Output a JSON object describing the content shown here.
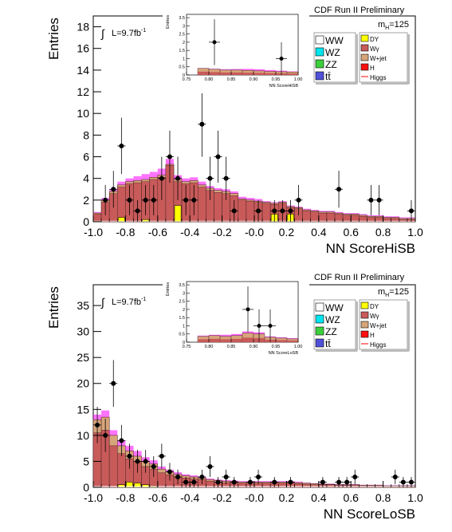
{
  "chart_data": [
    {
      "type": "bar",
      "title": "CDF Run II Preliminary",
      "mass_label": "m",
      "mass_sub": "H",
      "mass_value": "=125",
      "lumi_label": "L=9.7fb",
      "lumi_sup": "-1",
      "xlabel": "NN ScoreHiSB",
      "ylabel": "Entries",
      "xlim": [
        -1.0,
        1.0
      ],
      "ylim": [
        0,
        19
      ],
      "xticks": [
        "-1.0",
        "-0.8",
        "-0.6",
        "-0.4",
        "-0.2",
        "-0.0",
        "0.2",
        "0.4",
        "0.6",
        "0.8",
        "1.0"
      ],
      "yticks": [
        "0",
        "2",
        "4",
        "6",
        "8",
        "10",
        "12",
        "14",
        "16",
        "18"
      ],
      "ytick_values": [
        0,
        2,
        4,
        6,
        8,
        10,
        12,
        14,
        16,
        18
      ],
      "bin_width": 0.05,
      "bins_low": [
        -1.0,
        -0.95,
        -0.9,
        -0.85,
        -0.8,
        -0.75,
        -0.7,
        -0.65,
        -0.6,
        -0.55,
        -0.5,
        -0.45,
        -0.4,
        -0.35,
        -0.3,
        -0.25,
        -0.2,
        -0.15,
        -0.1,
        -0.05,
        0.0,
        0.05,
        0.1,
        0.15,
        0.2,
        0.25,
        0.3,
        0.35,
        0.4,
        0.45,
        0.5,
        0.55,
        0.6,
        0.65,
        0.7,
        0.75,
        0.8,
        0.85,
        0.9,
        0.95
      ],
      "stack_total": [
        0.8,
        2.0,
        2.8,
        3.4,
        3.7,
        3.8,
        3.9,
        4.1,
        4.3,
        5.3,
        3.9,
        3.7,
        3.8,
        3.4,
        3.1,
        2.9,
        2.8,
        2.6,
        2.1,
        2.0,
        1.9,
        1.8,
        1.7,
        1.8,
        1.4,
        1.3,
        1.1,
        1.0,
        0.9,
        0.9,
        0.8,
        0.7,
        0.7,
        0.6,
        0.5,
        0.5,
        0.4,
        0.4,
        0.3,
        0.3
      ],
      "wjet_top": [
        0.7,
        1.8,
        2.6,
        3.2,
        3.5,
        3.6,
        3.7,
        3.9,
        4.1,
        5.2,
        3.7,
        3.5,
        3.6,
        3.2,
        2.9,
        2.7,
        2.6,
        2.4,
        2.0,
        1.9,
        1.8,
        1.7,
        1.6,
        1.7,
        1.3,
        1.2,
        1.0,
        0.9,
        0.8,
        0.8,
        0.7,
        0.6,
        0.6,
        0.5,
        0.4,
        0.4,
        0.3,
        0.3,
        0.2,
        0.2
      ],
      "dy": [
        0,
        0,
        0,
        0.4,
        0,
        0,
        0.2,
        0,
        0,
        0,
        1.5,
        0,
        0,
        0,
        0,
        0,
        0,
        0,
        0,
        0,
        0,
        0,
        0.7,
        0,
        0.7,
        0,
        0,
        0,
        0,
        0,
        0,
        0,
        0,
        0,
        0,
        0,
        0,
        0,
        0,
        0
      ],
      "ww": [
        0.1,
        0.1,
        0.1,
        0.1,
        0.1,
        0.1,
        0.1,
        0.1,
        0.1,
        0.1,
        0.1,
        0.1,
        0.1,
        0.1,
        0.1,
        0.1,
        0.1,
        0.1,
        0.1,
        0.1,
        0.1,
        0.1,
        0.1,
        0.1,
        0.1,
        0.1,
        0.1,
        0.1,
        0.1,
        0.1,
        0.1,
        0.1,
        0.1,
        0.1,
        0.1,
        0.1,
        0.1,
        0.1,
        0.1,
        0.1
      ],
      "signal_band": [
        0.9,
        2.2,
        3.0,
        3.7,
        4.0,
        4.2,
        4.4,
        4.6,
        4.9,
        5.8,
        4.3,
        4.0,
        4.1,
        3.7,
        3.3,
        3.1,
        3.0,
        2.8,
        2.3,
        2.2,
        2.1,
        1.9,
        1.8,
        1.9,
        1.5,
        1.4,
        1.2,
        1.1,
        1.0,
        1.0,
        0.9,
        0.8,
        0.8,
        0.7,
        0.6,
        0.6,
        0.5,
        0.5,
        0.4,
        0.4
      ],
      "data_points": [
        {
          "x": -0.925,
          "y": 2,
          "err": 1.4
        },
        {
          "x": -0.875,
          "y": 3,
          "err": 1.7
        },
        {
          "x": -0.825,
          "y": 7,
          "err": 2.6
        },
        {
          "x": -0.775,
          "y": 2,
          "err": 1.4
        },
        {
          "x": -0.725,
          "y": 1,
          "err": 1.0
        },
        {
          "x": -0.675,
          "y": 2,
          "err": 1.4
        },
        {
          "x": -0.625,
          "y": 2,
          "err": 1.4
        },
        {
          "x": -0.575,
          "y": 4,
          "err": 2.0
        },
        {
          "x": -0.525,
          "y": 6,
          "err": 2.4
        },
        {
          "x": -0.475,
          "y": 4,
          "err": 2.0
        },
        {
          "x": -0.425,
          "y": 2,
          "err": 1.4
        },
        {
          "x": -0.375,
          "y": 2,
          "err": 1.4
        },
        {
          "x": -0.325,
          "y": 9,
          "err": 3.0
        },
        {
          "x": -0.275,
          "y": 4,
          "err": 2.0
        },
        {
          "x": -0.225,
          "y": 6,
          "err": 2.4
        },
        {
          "x": -0.175,
          "y": 4,
          "err": 2.0
        },
        {
          "x": -0.125,
          "y": 1,
          "err": 1.0
        },
        {
          "x": 0.025,
          "y": 1,
          "err": 1.0
        },
        {
          "x": 0.125,
          "y": 1,
          "err": 1.0
        },
        {
          "x": 0.175,
          "y": 1,
          "err": 1.0
        },
        {
          "x": 0.225,
          "y": 1,
          "err": 1.0
        },
        {
          "x": 0.275,
          "y": 2,
          "err": 1.4
        },
        {
          "x": 0.525,
          "y": 3,
          "err": 1.7
        },
        {
          "x": 0.725,
          "y": 2,
          "err": 1.4
        },
        {
          "x": 0.775,
          "y": 2,
          "err": 1.4
        },
        {
          "x": 0.975,
          "y": 1,
          "err": 1.0
        }
      ],
      "inset": {
        "xlabel": "NN ScoreHiSB",
        "ylabel": "Entries",
        "xlim": [
          0.75,
          1.0
        ],
        "ylim": [
          0,
          3.7
        ],
        "xticks": [
          "0.75",
          "0.80",
          "0.85",
          "0.90",
          "0.95",
          "1.00"
        ],
        "xtick_values": [
          0.75,
          0.8,
          0.85,
          0.9,
          0.95,
          1.0
        ],
        "yticks": [
          "0",
          "0.5",
          "1",
          "1.5",
          "2",
          "2.5",
          "3",
          "3.5"
        ],
        "ytick_values": [
          0,
          0.5,
          1,
          1.5,
          2,
          2.5,
          3,
          3.5
        ],
        "bins_low": [
          0.775,
          0.8,
          0.825,
          0.85,
          0.875,
          0.9,
          0.925,
          0.95,
          0.975
        ],
        "stack_total": [
          0.4,
          0.35,
          0.3,
          0.3,
          0.28,
          0.25,
          0.22,
          0.2,
          0.18
        ],
        "signal_band": [
          0.42,
          0.38,
          0.35,
          0.36,
          0.37,
          0.35,
          0.3,
          0.26,
          0.22
        ],
        "data_points": [
          {
            "x": 0.8125,
            "y": 2,
            "err": 1.4
          },
          {
            "x": 0.9625,
            "y": 1,
            "err": 1.0
          }
        ]
      }
    },
    {
      "type": "bar",
      "title": "CDF Run II Preliminary",
      "mass_label": "m",
      "mass_sub": "H",
      "mass_value": "=125",
      "lumi_label": "L=9.7fb",
      "lumi_sup": "-1",
      "xlabel": "NN ScoreLoSB",
      "ylabel": "Entries",
      "xlim": [
        -1.0,
        1.0
      ],
      "ylim": [
        0,
        39
      ],
      "xticks": [
        "-1.0",
        "-0.8",
        "-0.6",
        "-0.4",
        "-0.2",
        "-0.0",
        "0.2",
        "0.4",
        "0.6",
        "0.8",
        "1.0"
      ],
      "yticks": [
        "0",
        "5",
        "10",
        "15",
        "20",
        "25",
        "30",
        "35"
      ],
      "ytick_values": [
        0,
        5,
        10,
        15,
        20,
        25,
        30,
        35
      ],
      "bin_width": 0.05,
      "bins_low": [
        -1.0,
        -0.95,
        -0.9,
        -0.85,
        -0.8,
        -0.75,
        -0.7,
        -0.65,
        -0.6,
        -0.55,
        -0.5,
        -0.45,
        -0.4,
        -0.35,
        -0.3,
        -0.25,
        -0.2,
        -0.15,
        -0.1,
        -0.05,
        0.0,
        0.05,
        0.1,
        0.15,
        0.2,
        0.25,
        0.3,
        0.35,
        0.4,
        0.45,
        0.5,
        0.55,
        0.6,
        0.65,
        0.7,
        0.75,
        0.8,
        0.85,
        0.9,
        0.95
      ],
      "stack_total": [
        13.0,
        13.5,
        10.0,
        8.0,
        7.0,
        6.0,
        5.0,
        4.5,
        3.5,
        3.0,
        2.5,
        2.2,
        2.0,
        1.8,
        1.5,
        1.3,
        1.2,
        1.1,
        1.0,
        1.0,
        1.0,
        1.0,
        1.0,
        1.0,
        1.0,
        0.9,
        0.8,
        0.7,
        0.6,
        0.6,
        0.5,
        0.5,
        0.5,
        0.4,
        0.4,
        0.4,
        0.3,
        0.3,
        0.3,
        0.3
      ],
      "wjet_top": [
        10.5,
        11.0,
        8.0,
        6.5,
        5.5,
        5.0,
        4.0,
        3.5,
        2.8,
        2.4,
        2.0,
        1.8,
        1.6,
        1.5,
        1.2,
        1.0,
        0.9,
        0.9,
        0.8,
        0.8,
        0.8,
        0.8,
        0.8,
        0.8,
        0.8,
        0.7,
        0.6,
        0.5,
        0.5,
        0.5,
        0.4,
        0.4,
        0.4,
        0.3,
        0.3,
        0.3,
        0.2,
        0.2,
        0.2,
        0.2
      ],
      "dy": [
        0,
        0,
        0,
        0.5,
        1.0,
        0.8,
        0.5,
        0.2,
        0,
        0,
        0,
        0,
        0,
        0,
        0,
        0,
        0,
        0,
        0,
        0,
        0,
        0,
        0,
        0,
        0,
        0,
        0,
        0,
        0,
        0,
        0,
        0,
        0,
        0,
        0,
        0,
        0,
        0,
        0,
        0
      ],
      "ww": [
        0.3,
        0.3,
        0.3,
        0.3,
        0.3,
        0.3,
        0.3,
        0.3,
        0.3,
        0.3,
        0.3,
        0.3,
        0.3,
        0.3,
        0.3,
        0.3,
        0.3,
        0.3,
        0.3,
        0.3,
        0.3,
        0.3,
        0.3,
        0.3,
        0.3,
        0.3,
        0.3,
        0.3,
        0.3,
        0.3,
        0.3,
        0.3,
        0.3,
        0.3,
        0.3,
        0.3,
        0.3,
        0.3,
        0.3,
        0.3
      ],
      "signal_band": [
        14.0,
        14.8,
        11.0,
        9.0,
        8.0,
        7.0,
        5.8,
        5.2,
        4.0,
        3.4,
        2.9,
        2.5,
        2.3,
        2.0,
        1.7,
        1.5,
        1.4,
        1.3,
        1.2,
        1.2,
        1.2,
        1.2,
        1.2,
        1.2,
        1.2,
        1.1,
        0.9,
        0.8,
        0.7,
        0.7,
        0.6,
        0.6,
        0.6,
        0.5,
        0.5,
        0.5,
        0.4,
        0.4,
        0.4,
        0.4
      ],
      "data_points": [
        {
          "x": -0.975,
          "y": 12,
          "err": 3.5
        },
        {
          "x": -0.925,
          "y": 10,
          "err": 3.2
        },
        {
          "x": -0.875,
          "y": 20,
          "err": 4.5
        },
        {
          "x": -0.825,
          "y": 9,
          "err": 3.0
        },
        {
          "x": -0.775,
          "y": 6,
          "err": 2.4
        },
        {
          "x": -0.725,
          "y": 5,
          "err": 2.2
        },
        {
          "x": -0.675,
          "y": 5,
          "err": 2.2
        },
        {
          "x": -0.625,
          "y": 4,
          "err": 2.0
        },
        {
          "x": -0.575,
          "y": 6,
          "err": 2.4
        },
        {
          "x": -0.525,
          "y": 3,
          "err": 1.7
        },
        {
          "x": -0.475,
          "y": 2,
          "err": 1.4
        },
        {
          "x": -0.425,
          "y": 1,
          "err": 1.0
        },
        {
          "x": -0.375,
          "y": 1,
          "err": 1.0
        },
        {
          "x": -0.325,
          "y": 2,
          "err": 1.4
        },
        {
          "x": -0.275,
          "y": 4,
          "err": 2.0
        },
        {
          "x": -0.225,
          "y": 1,
          "err": 1.0
        },
        {
          "x": -0.175,
          "y": 2,
          "err": 1.4
        },
        {
          "x": -0.125,
          "y": 1,
          "err": 1.0
        },
        {
          "x": -0.025,
          "y": 1,
          "err": 1.0
        },
        {
          "x": 0.025,
          "y": 2,
          "err": 1.4
        },
        {
          "x": 0.125,
          "y": 1,
          "err": 1.0
        },
        {
          "x": 0.225,
          "y": 1,
          "err": 1.0
        },
        {
          "x": 0.425,
          "y": 1,
          "err": 1.0
        },
        {
          "x": 0.525,
          "y": 1,
          "err": 1.0
        },
        {
          "x": 0.575,
          "y": 1,
          "err": 1.0
        },
        {
          "x": 0.625,
          "y": 2,
          "err": 1.4
        },
        {
          "x": 0.875,
          "y": 2,
          "err": 1.4
        },
        {
          "x": 0.925,
          "y": 1,
          "err": 1.0
        },
        {
          "x": 0.975,
          "y": 1,
          "err": 1.0
        }
      ],
      "inset": {
        "xlabel": "NN ScoreLoSB",
        "ylabel": "Entries",
        "xlim": [
          0.75,
          1.0
        ],
        "ylim": [
          0,
          3.7
        ],
        "xticks": [
          "0.75",
          "0.80",
          "0.85",
          "0.90",
          "0.95",
          "1.00"
        ],
        "xtick_values": [
          0.75,
          0.8,
          0.85,
          0.9,
          0.95,
          1.0
        ],
        "yticks": [
          "0",
          "0.5",
          "1",
          "1.5",
          "2",
          "2.5",
          "3",
          "3.5"
        ],
        "ytick_values": [
          0,
          0.5,
          1,
          1.5,
          2,
          2.5,
          3,
          3.5
        ],
        "bins_low": [
          0.775,
          0.8,
          0.825,
          0.85,
          0.875,
          0.9,
          0.925,
          0.95,
          0.975
        ],
        "stack_total": [
          0.35,
          0.4,
          0.35,
          0.4,
          0.55,
          0.5,
          0.3,
          0.25,
          0.2
        ],
        "signal_band": [
          0.4,
          0.45,
          0.45,
          0.5,
          0.65,
          0.6,
          0.35,
          0.3,
          0.25
        ],
        "data_points": [
          {
            "x": 0.8875,
            "y": 2,
            "err": 1.4
          },
          {
            "x": 0.9125,
            "y": 1,
            "err": 1.0
          },
          {
            "x": 0.9375,
            "y": 1,
            "err": 1.0
          }
        ]
      }
    }
  ],
  "legend": {
    "left": [
      {
        "label": "WW",
        "color": "#ffffff"
      },
      {
        "label": "WZ",
        "color": "#00e5ee"
      },
      {
        "label": "ZZ",
        "color": "#3ccf3c"
      },
      {
        "label": "tt̄",
        "color": "#5050d8"
      }
    ],
    "right": [
      {
        "label": "DY",
        "color": "#ffff00"
      },
      {
        "label": "Wγ",
        "color": "#c85a5a"
      },
      {
        "label": "W+jet",
        "color": "#d6a57a"
      },
      {
        "label": "H",
        "color": "#ff1010"
      },
      {
        "label": "Higgs",
        "color": "#ff00ff"
      }
    ]
  },
  "colors": {
    "wgamma": "#c85a5a",
    "wjet": "#d6a57a",
    "dy": "#ffff00",
    "ww": "#ffffff",
    "signal": "#ff00ff",
    "data": "#000000"
  }
}
